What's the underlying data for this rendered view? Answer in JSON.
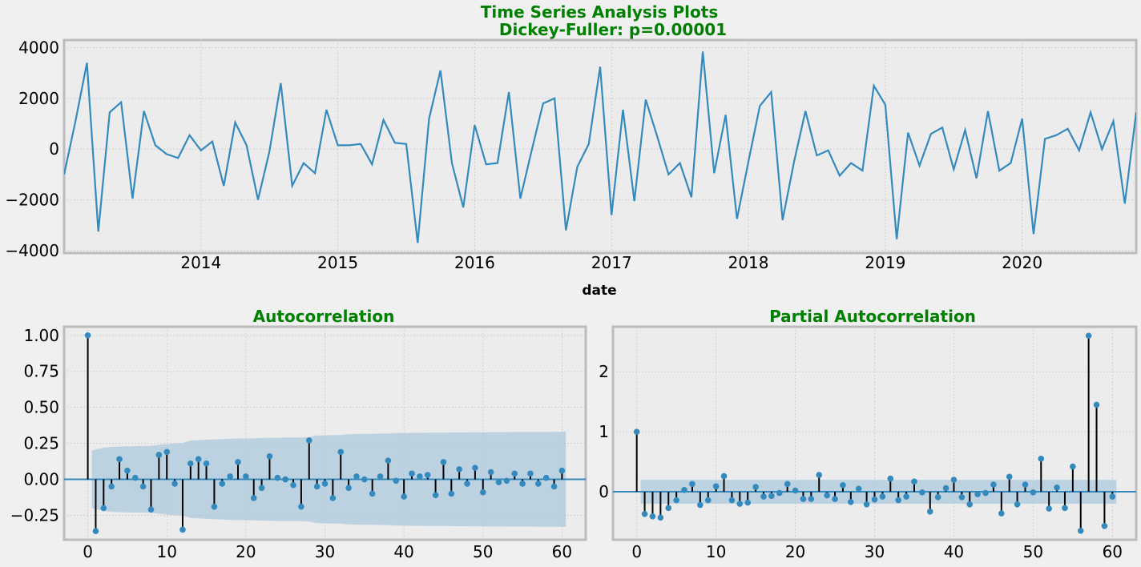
{
  "chart_data": [
    {
      "type": "line",
      "title": "Time Series Analysis Plots\nDickey-Fuller: p=0.00001",
      "title_line1": "Time Series Analysis Plots",
      "title_line2": "Dickey-Fuller: p=0.00001",
      "xlabel": "date",
      "ylabel": "",
      "xlim": [
        "2013-01",
        "2020-11"
      ],
      "ylim": [
        -4100,
        4300
      ],
      "x_ticks": [
        "2014",
        "2015",
        "2016",
        "2017",
        "2018",
        "2019",
        "2020"
      ],
      "y_ticks": [
        "−4000",
        "−2000",
        "0",
        "2000",
        "4000"
      ],
      "grid": true,
      "line_color": "#348ABD",
      "series": [
        {
          "start": "2013-01",
          "frequency": "monthly",
          "values": [
            -1000,
            1100,
            3400,
            -3250,
            1450,
            1850,
            -1950,
            1500,
            150,
            -200,
            -350,
            550,
            -50,
            300,
            -1450,
            1050,
            150,
            -2000,
            -100,
            2600,
            -1450,
            -550,
            -950,
            1550,
            150,
            150,
            200,
            -600,
            1150,
            250,
            200,
            -3700,
            1200,
            3100,
            -550,
            -2300,
            950,
            -600,
            -550,
            2250,
            -1950,
            -50,
            1800,
            2000,
            -3200,
            -700,
            200,
            3250,
            -2600,
            1550,
            -2050,
            1950,
            500,
            -1000,
            -550,
            -1900,
            3850,
            -950,
            1350,
            -2750,
            -500,
            1700,
            2250,
            -2800,
            -500,
            1500,
            -250,
            -50,
            -1050,
            -550,
            -850,
            2500,
            1750,
            -3550,
            650,
            -650,
            600,
            850,
            -800,
            750,
            -1150,
            1500,
            -850,
            -550,
            1200,
            -3350,
            400,
            550,
            800,
            -50,
            1450,
            0,
            1100,
            -2150,
            1450
          ]
        }
      ]
    },
    {
      "type": "bar",
      "title": "Autocorrelation",
      "xlim": [
        -3,
        63
      ],
      "ylim": [
        -0.42,
        1.06
      ],
      "x_ticks": [
        "0",
        "10",
        "20",
        "30",
        "40",
        "50",
        "60"
      ],
      "y_ticks": [
        "−0.25",
        "0.00",
        "0.25",
        "0.50",
        "0.75",
        "1.00"
      ],
      "grid": true,
      "marker_color": "#348ABD",
      "stem_color": "#000000",
      "confidence_color": "#a9c8dd",
      "lags": [
        0,
        1,
        2,
        3,
        4,
        5,
        6,
        7,
        8,
        9,
        10,
        11,
        12,
        13,
        14,
        15,
        16,
        17,
        18,
        19,
        20,
        21,
        22,
        23,
        24,
        25,
        26,
        27,
        28,
        29,
        30,
        31,
        32,
        33,
        34,
        35,
        36,
        37,
        38,
        39,
        40,
        41,
        42,
        43,
        44,
        45,
        46,
        47,
        48,
        49,
        50,
        51,
        52,
        53,
        54,
        55,
        56,
        57,
        58,
        59,
        60
      ],
      "values": [
        1.0,
        -0.36,
        -0.2,
        -0.05,
        0.14,
        0.06,
        0.01,
        -0.05,
        -0.21,
        0.17,
        0.19,
        -0.03,
        -0.35,
        0.11,
        0.14,
        0.11,
        -0.19,
        -0.03,
        0.02,
        0.12,
        0.02,
        -0.13,
        -0.06,
        0.16,
        0.01,
        0.0,
        -0.04,
        -0.19,
        0.27,
        -0.05,
        -0.03,
        -0.13,
        0.19,
        -0.06,
        0.02,
        0.0,
        -0.1,
        0.02,
        0.13,
        -0.01,
        -0.12,
        0.04,
        0.02,
        0.03,
        -0.11,
        0.12,
        -0.1,
        0.07,
        -0.03,
        0.08,
        -0.09,
        0.05,
        -0.02,
        -0.01,
        0.04,
        -0.03,
        0.04,
        -0.03,
        0.01,
        -0.05,
        0.06
      ],
      "confidence_band": {
        "lags": [
          1,
          2,
          3,
          4,
          5,
          6,
          7,
          8,
          9,
          10,
          11,
          12,
          13,
          14,
          15,
          16,
          17,
          18,
          19,
          20,
          21,
          22,
          23,
          24,
          25,
          26,
          27,
          28,
          29,
          30,
          31,
          32,
          33,
          34,
          35,
          36,
          37,
          38,
          39,
          40,
          41,
          42,
          43,
          44,
          45,
          46,
          47,
          48,
          49,
          50,
          51,
          52,
          53,
          54,
          55,
          56,
          57,
          58,
          59,
          60
        ],
        "half_width": [
          0.2,
          0.22,
          0.225,
          0.228,
          0.23,
          0.231,
          0.231,
          0.232,
          0.24,
          0.245,
          0.25,
          0.252,
          0.27,
          0.272,
          0.275,
          0.277,
          0.28,
          0.282,
          0.283,
          0.284,
          0.285,
          0.287,
          0.288,
          0.289,
          0.29,
          0.29,
          0.291,
          0.293,
          0.305,
          0.306,
          0.307,
          0.308,
          0.313,
          0.315,
          0.316,
          0.316,
          0.317,
          0.318,
          0.322,
          0.322,
          0.323,
          0.323,
          0.324,
          0.324,
          0.324,
          0.325,
          0.326,
          0.326,
          0.327,
          0.327,
          0.328,
          0.328,
          0.328,
          0.329,
          0.329,
          0.329,
          0.33,
          0.33,
          0.33,
          0.331
        ]
      }
    },
    {
      "type": "bar",
      "title": "Partial Autocorrelation",
      "xlim": [
        -3,
        63
      ],
      "ylim": [
        -0.8,
        2.75
      ],
      "x_ticks": [
        "0",
        "10",
        "20",
        "30",
        "40",
        "50",
        "60"
      ],
      "y_ticks": [
        "0",
        "1",
        "2"
      ],
      "grid": true,
      "marker_color": "#348ABD",
      "stem_color": "#000000",
      "confidence_color": "#a9c8dd",
      "lags": [
        0,
        1,
        2,
        3,
        4,
        5,
        6,
        7,
        8,
        9,
        10,
        11,
        12,
        13,
        14,
        15,
        16,
        17,
        18,
        19,
        20,
        21,
        22,
        23,
        24,
        25,
        26,
        27,
        28,
        29,
        30,
        31,
        32,
        33,
        34,
        35,
        36,
        37,
        38,
        39,
        40,
        41,
        42,
        43,
        44,
        45,
        46,
        47,
        48,
        49,
        50,
        51,
        52,
        53,
        54,
        55,
        56,
        57,
        58,
        59,
        60
      ],
      "values": [
        1.0,
        -0.37,
        -0.41,
        -0.43,
        -0.27,
        -0.14,
        0.03,
        0.13,
        -0.22,
        -0.14,
        0.09,
        0.26,
        -0.14,
        -0.2,
        -0.18,
        0.08,
        -0.08,
        -0.07,
        -0.02,
        0.13,
        0.02,
        -0.12,
        -0.12,
        0.28,
        -0.06,
        -0.12,
        0.11,
        -0.17,
        0.05,
        -0.21,
        -0.13,
        -0.08,
        0.22,
        -0.14,
        -0.08,
        0.17,
        -0.01,
        -0.33,
        -0.09,
        0.06,
        0.2,
        -0.09,
        -0.21,
        -0.04,
        -0.02,
        0.12,
        -0.36,
        0.25,
        -0.21,
        0.12,
        -0.01,
        0.55,
        -0.28,
        0.07,
        -0.27,
        0.42,
        -0.65,
        2.6,
        1.45,
        -0.57,
        -0.08
      ],
      "confidence_band": {
        "lags": [
          1,
          60
        ],
        "half_width": [
          0.2,
          0.2
        ]
      }
    }
  ]
}
